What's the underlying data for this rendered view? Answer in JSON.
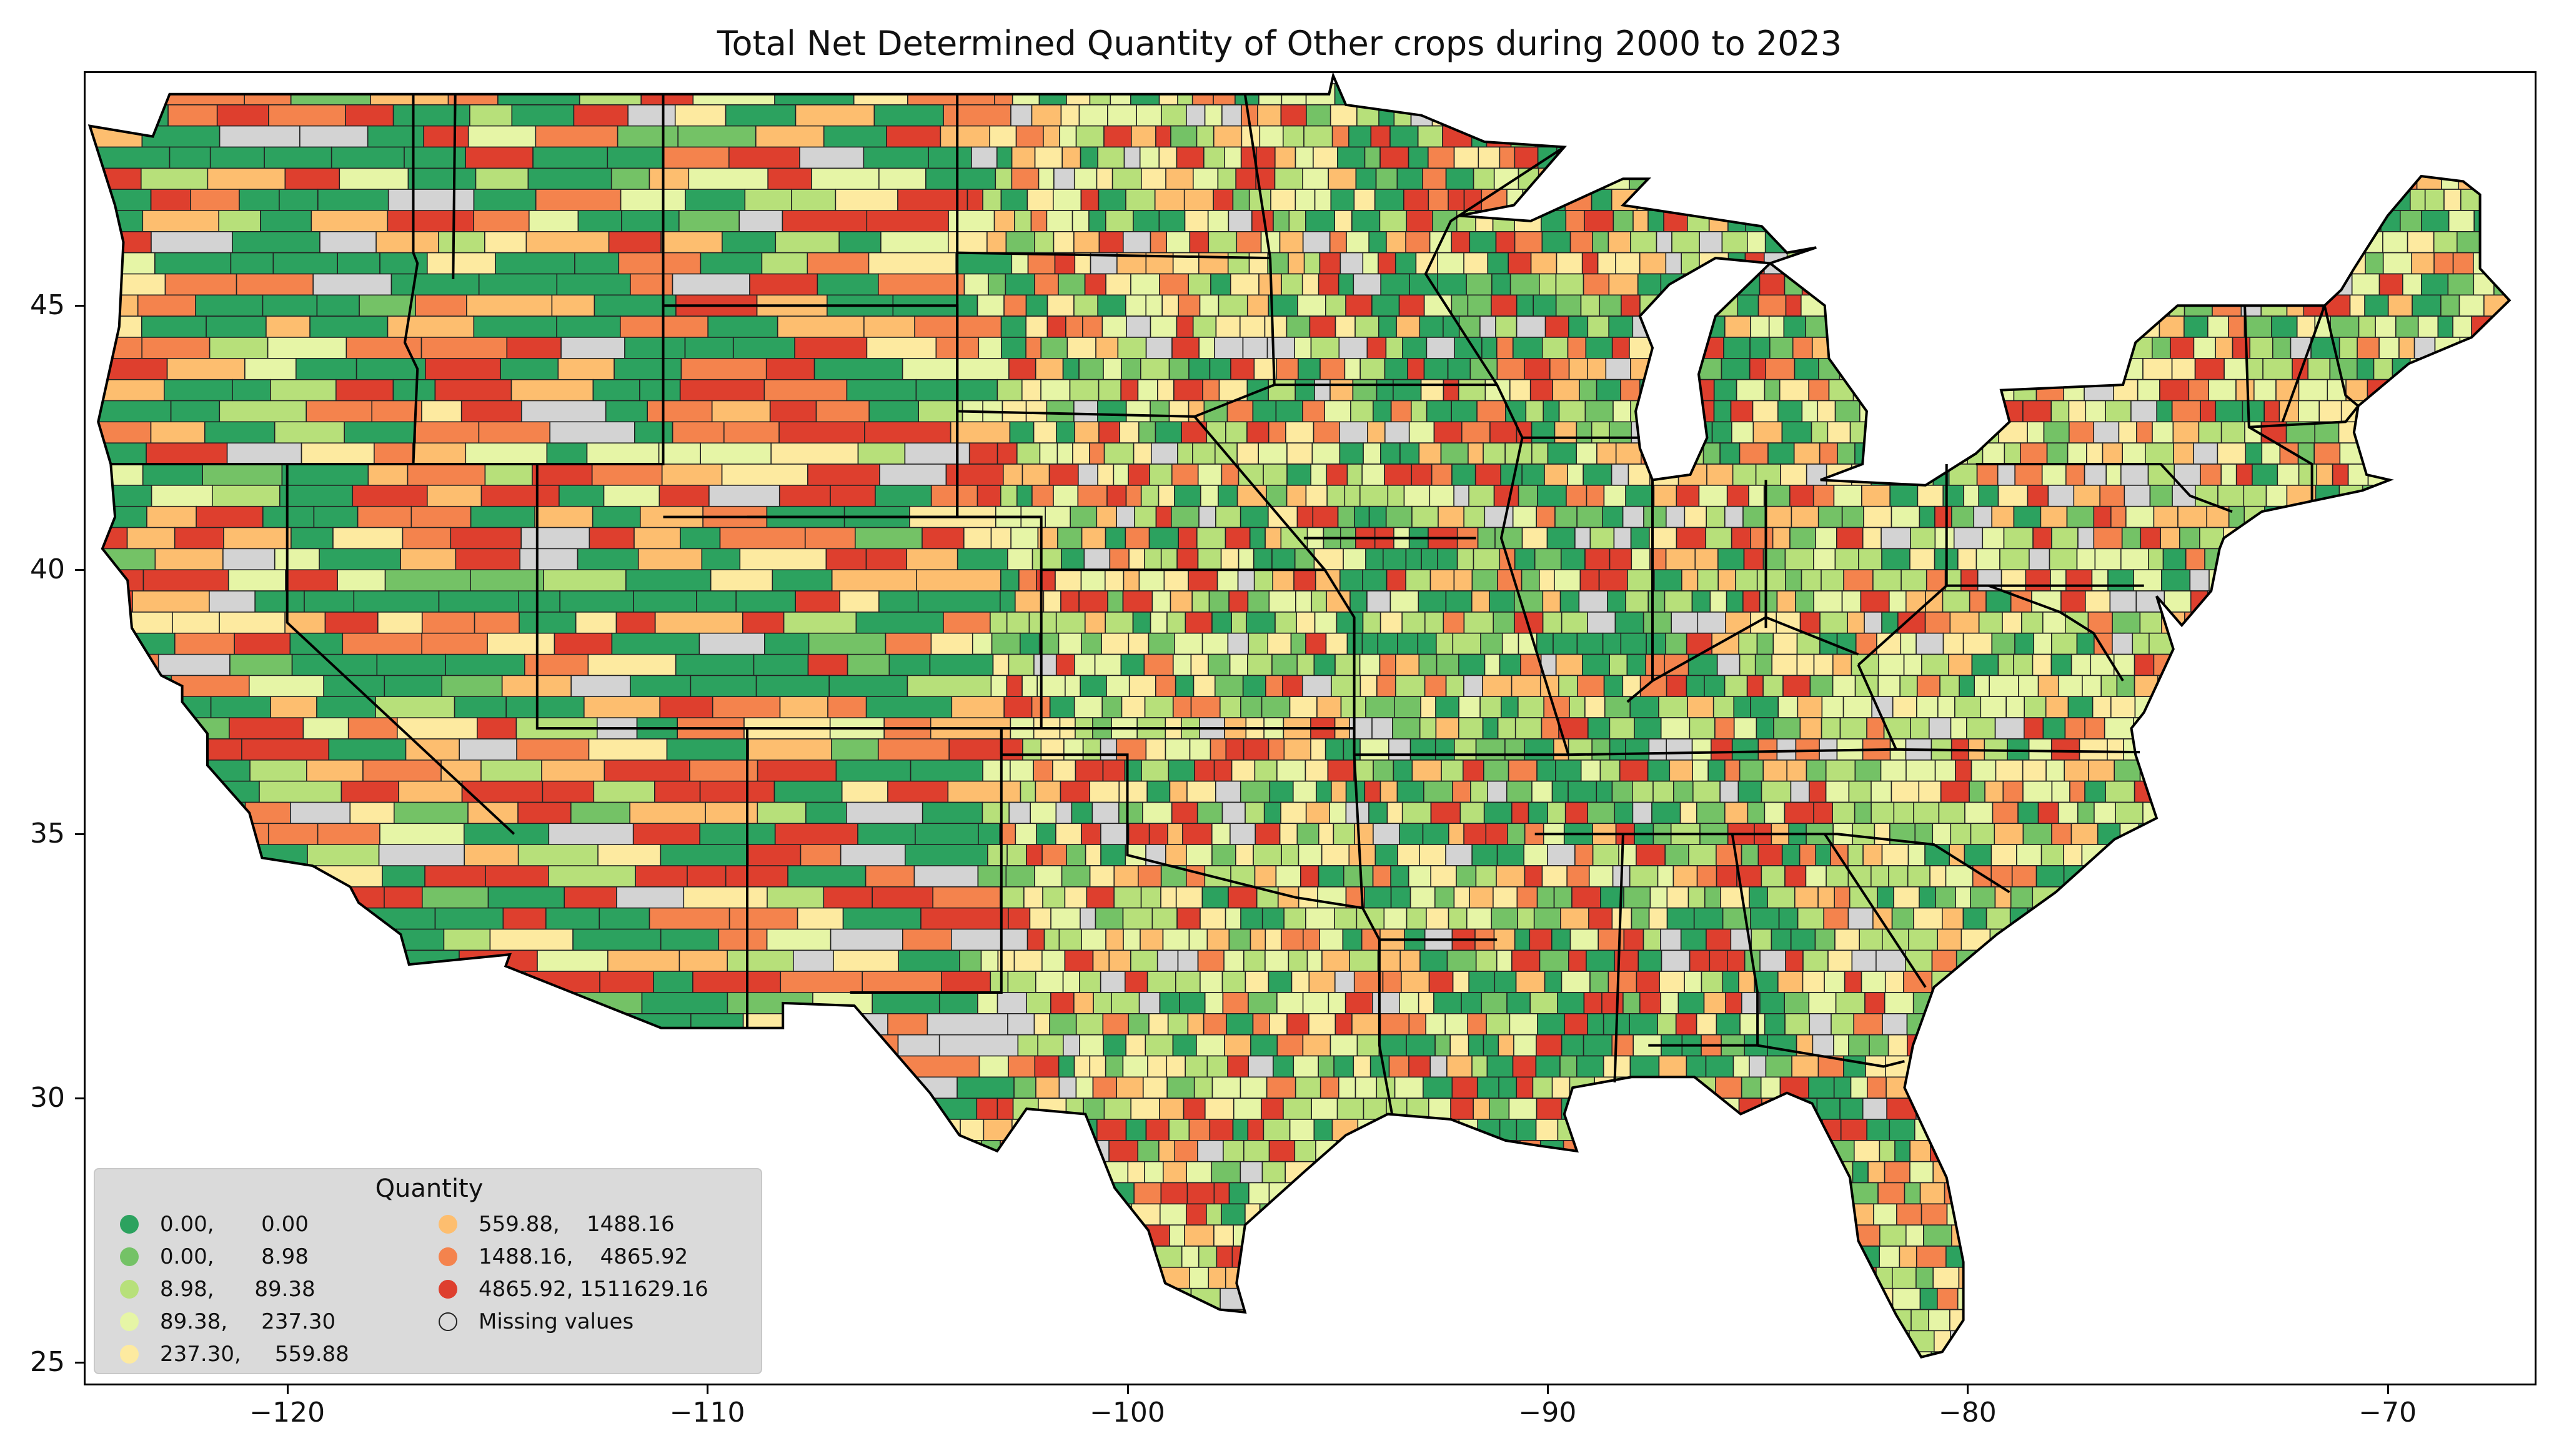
{
  "title": "Total Net Determined Quantity of Other crops during 2000 to 2023",
  "axes": {
    "xlim": [
      -124.8,
      -66.5
    ],
    "ylim": [
      24.6,
      49.4
    ],
    "xticks": [
      {
        "value": -120,
        "label": "−120"
      },
      {
        "value": -110,
        "label": "−110"
      },
      {
        "value": -100,
        "label": "−100"
      },
      {
        "value": -90,
        "label": "−90"
      },
      {
        "value": -80,
        "label": "−80"
      },
      {
        "value": -70,
        "label": "−70"
      }
    ],
    "yticks": [
      {
        "value": 25,
        "label": "25"
      },
      {
        "value": 30,
        "label": "30"
      },
      {
        "value": 35,
        "label": "35"
      },
      {
        "value": 40,
        "label": "40"
      },
      {
        "value": 45,
        "label": "45"
      }
    ]
  },
  "legend": {
    "title": "Quantity",
    "items": [
      {
        "label": "0.00,       0.00",
        "color": "#2ca25f"
      },
      {
        "label": "0.00,       8.98",
        "color": "#74c266"
      },
      {
        "label": "8.98,      89.38",
        "color": "#b7e07a"
      },
      {
        "label": "89.38,     237.30",
        "color": "#e6f5a6"
      },
      {
        "label": "237.30,     559.88",
        "color": "#fdeaa0"
      },
      {
        "label": "559.88,    1488.16",
        "color": "#fdbe6f"
      },
      {
        "label": "1488.16,    4865.92",
        "color": "#f4834d"
      },
      {
        "label": "4865.92, 1511629.16",
        "color": "#de3f2e"
      },
      {
        "label": "Missing values",
        "color": "#d3d3d3"
      }
    ]
  },
  "map": {
    "missing_color": "#d3d3d3",
    "border_color": "#000000"
  }
}
